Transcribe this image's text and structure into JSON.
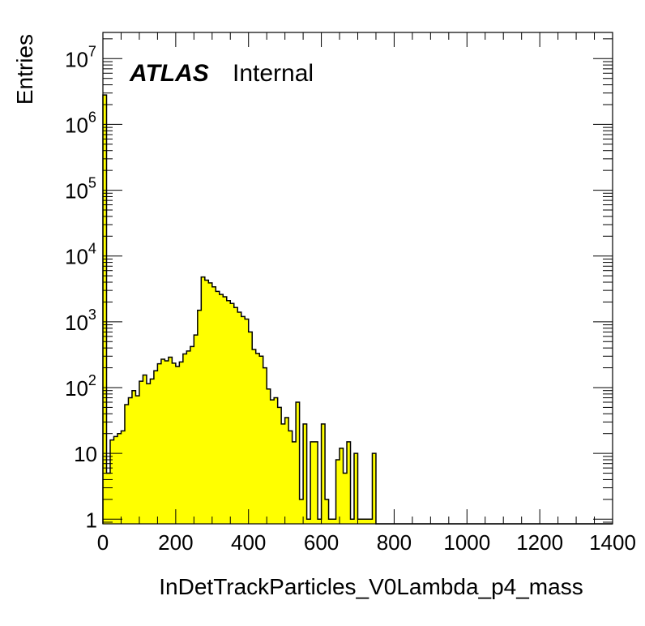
{
  "label": {
    "experiment": "ATLAS",
    "status": "Internal"
  },
  "chart_data": {
    "type": "bar",
    "histogram": true,
    "xlabel": "InDetTrackParticles_V0Lambda_p4_mass",
    "ylabel": "Entries",
    "xlim": [
      0,
      1400
    ],
    "ylim": [
      0.85,
      25000000
    ],
    "yscale": "log",
    "x_ticks": [
      "0",
      "200",
      "400",
      "600",
      "800",
      "1000",
      "1200",
      "1400"
    ],
    "y_ticks": [
      {
        "base": "1",
        "exp": ""
      },
      {
        "base": "10",
        "exp": ""
      },
      {
        "base": "10",
        "exp": "2"
      },
      {
        "base": "10",
        "exp": "3"
      },
      {
        "base": "10",
        "exp": "4"
      },
      {
        "base": "10",
        "exp": "5"
      },
      {
        "base": "10",
        "exp": "6"
      },
      {
        "base": "10",
        "exp": "7"
      }
    ],
    "fill_color": "#ffff00",
    "line_color": "#000000",
    "grid": false,
    "bin_width": 10,
    "bin_edges_start": 0,
    "values": [
      2800000,
      5,
      16,
      18,
      20,
      22,
      55,
      70,
      90,
      75,
      125,
      155,
      115,
      135,
      180,
      230,
      270,
      255,
      290,
      235,
      210,
      245,
      325,
      360,
      420,
      630,
      1500,
      4800,
      4300,
      3900,
      3400,
      2900,
      2600,
      2400,
      2100,
      1900,
      1650,
      1400,
      1200,
      1100,
      700,
      380,
      330,
      300,
      200,
      95,
      65,
      70,
      50,
      28,
      35,
      22,
      15,
      60,
      2,
      28,
      1,
      15,
      15,
      1,
      28,
      2,
      1,
      1,
      8,
      12,
      5,
      15,
      1,
      10,
      1,
      1,
      1,
      1,
      10,
      0,
      0,
      0,
      0,
      0,
      0,
      0,
      0,
      0,
      0,
      0,
      0,
      0,
      0,
      0,
      0,
      0,
      0,
      0,
      0,
      0,
      0,
      0,
      0,
      0,
      0,
      0,
      0,
      0,
      0,
      0,
      0,
      0,
      0,
      0,
      0,
      0,
      0,
      0,
      0,
      0,
      0,
      0,
      0,
      0,
      0,
      0,
      0,
      0,
      0,
      0,
      0,
      0,
      0,
      0,
      0,
      0,
      0,
      0,
      0,
      0,
      0,
      0,
      0,
      0
    ]
  }
}
